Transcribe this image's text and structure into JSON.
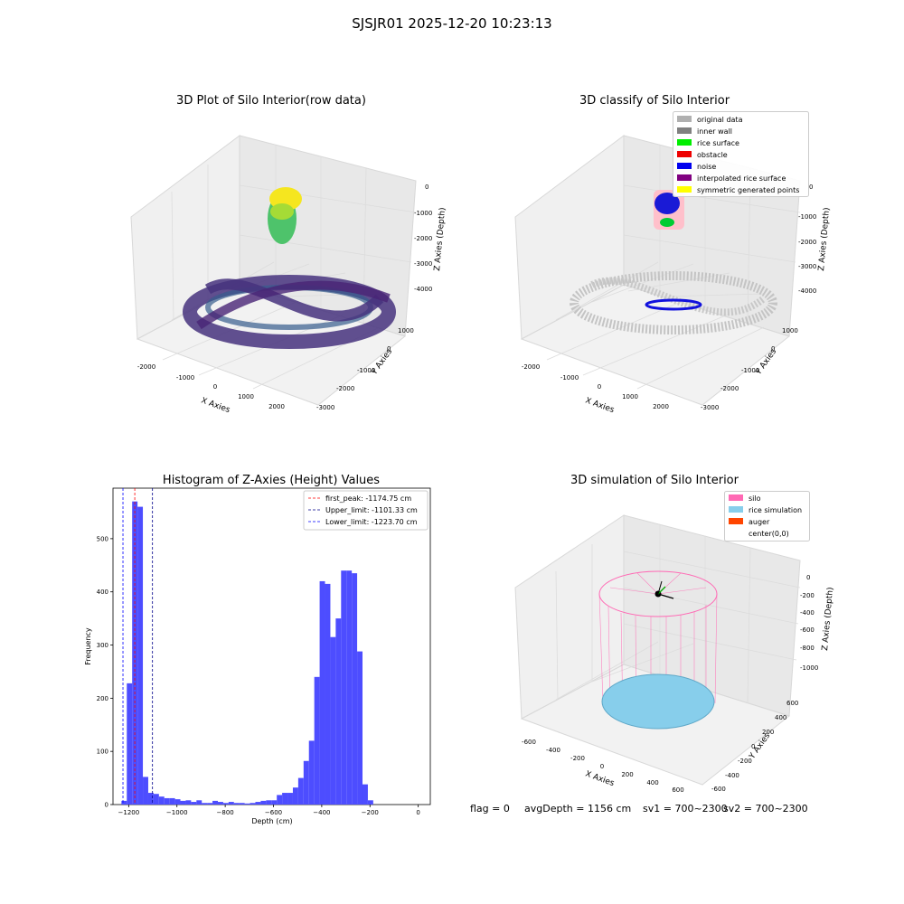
{
  "figure_title": "SJSJR01 2025-12-20 10:23:13",
  "panels": {
    "raw": {
      "title": "3D Plot of Silo Interior(row data)",
      "xlabel": "X Axies",
      "ylabel": "Y Axies",
      "zlabel": "Z Axies (Depth)",
      "xticks": [
        "-2000",
        "-1000",
        "0",
        "1000",
        "2000"
      ],
      "yticks": [
        "1000",
        "0",
        "-1000",
        "-2000",
        "-3000"
      ],
      "zticks": [
        "0",
        "-1000",
        "-2000",
        "-3000",
        "-4000"
      ]
    },
    "classify": {
      "title": "3D classify of Silo Interior",
      "xlabel": "X Axies",
      "ylabel": "Y Axies",
      "zlabel": "Z Axies (Depth)",
      "xticks": [
        "-2000",
        "-1000",
        "0",
        "1000",
        "2000"
      ],
      "yticks": [
        "1000",
        "0",
        "-1000",
        "-2000",
        "-3000"
      ],
      "zticks": [
        "0",
        "-1000",
        "-2000",
        "-3000",
        "-4000"
      ],
      "legend": [
        {
          "label": "original data",
          "color": "#b0b0b0"
        },
        {
          "label": "inner wall",
          "color": "#808080"
        },
        {
          "label": "rice surface",
          "color": "#00ee00"
        },
        {
          "label": "obstacle",
          "color": "#ee0000"
        },
        {
          "label": "noise",
          "color": "#0000ee"
        },
        {
          "label": "interpolated rice surface",
          "color": "#800080"
        },
        {
          "label": "symmetric generated points",
          "color": "#ffff00"
        }
      ]
    },
    "simulation": {
      "title": "3D simulation of Silo Interior",
      "xlabel": "X Axies",
      "ylabel": "Y Axies",
      "zlabel": "Z Axies (Depth)",
      "xticks": [
        "-600",
        "-400",
        "-200",
        "0",
        "200",
        "400",
        "600"
      ],
      "yticks": [
        "600",
        "400",
        "200",
        "0",
        "-200",
        "-400",
        "-600"
      ],
      "zticks": [
        "0",
        "-200",
        "-400",
        "-600",
        "-800",
        "-1000"
      ],
      "legend": [
        {
          "label": "silo",
          "color": "#ff69b4"
        },
        {
          "label": "rice simulation",
          "color": "#87ceeb"
        },
        {
          "label": "auger",
          "color": "#ff4500"
        },
        {
          "label": "center(0,0)",
          "color": ""
        }
      ]
    }
  },
  "chart_data": [
    {
      "type": "bar",
      "title": "Histogram of Z-Axies (Height) Values",
      "xlabel": "Depth (cm)",
      "ylabel": "Frequency",
      "xlim": [
        -1265,
        50
      ],
      "ylim": [
        0,
        595
      ],
      "bar_color": "#4d4dff",
      "bin_width": 22.2,
      "bin_starts": [
        -1230,
        -1207.8,
        -1185.6,
        -1163.4,
        -1141.2,
        -1119,
        -1096.8,
        -1074.6,
        -1052.4,
        -1030.2,
        -1008,
        -985.8,
        -963.6,
        -941.4,
        -919.2,
        -897,
        -874.8,
        -852.6,
        -830.4,
        -808.2,
        -786,
        -763.8,
        -741.6,
        -719.4,
        -697.2,
        -675,
        -652.8,
        -630.6,
        -608.4,
        -586.2,
        -564,
        -541.8,
        -519.6,
        -497.4,
        -475.2,
        -453,
        -430.8,
        -408.6,
        -386.4,
        -364.2,
        -342,
        -319.8,
        -297.6,
        -275.4,
        -253.2,
        -231,
        -208.8,
        -186.6,
        -164.4,
        -142.2,
        -120,
        -97.8,
        -75.8,
        -53.6,
        -31.4,
        -9.2
      ],
      "values": [
        7,
        228,
        570,
        560,
        52,
        22,
        20,
        15,
        12,
        12,
        10,
        7,
        8,
        5,
        8,
        3,
        3,
        7,
        5,
        3,
        5,
        3,
        3,
        2,
        3,
        5,
        7,
        8,
        8,
        18,
        22,
        22,
        32,
        50,
        82,
        120,
        240,
        420,
        415,
        315,
        350,
        440,
        440,
        435,
        288,
        38,
        8,
        0,
        0,
        0,
        0,
        0,
        0,
        0,
        0,
        0
      ],
      "xticks": [
        -1200,
        -1000,
        -800,
        -600,
        -400,
        -200,
        0
      ],
      "xtick_labels": [
        "−1200",
        "−1000",
        "−800",
        "−600",
        "−400",
        "−200",
        "0"
      ],
      "yticks": [
        0,
        100,
        200,
        300,
        400,
        500
      ],
      "ytick_labels": [
        "0",
        "100",
        "200",
        "300",
        "400",
        "500"
      ],
      "vlines": [
        {
          "label": "first_peak: -1174.75 cm",
          "x": -1174.75,
          "color": "#ff0000"
        },
        {
          "label": "Upper_limit: -1101.33 cm",
          "x": -1101.33,
          "color": "#00008b"
        },
        {
          "label": "Lower_limit: -1223.70 cm",
          "x": -1223.7,
          "color": "#0000ff"
        }
      ]
    }
  ],
  "footer": {
    "flag": "flag = 0",
    "avg": "avgDepth = 1156 cm",
    "sv1": "sv1 = 700~2300",
    "sv2": "sv2 = 700~2300"
  }
}
